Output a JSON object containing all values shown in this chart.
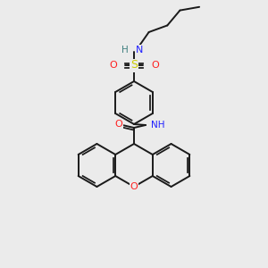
{
  "bg_color": "#ebebeb",
  "bond_color": "#1a1a1a",
  "atom_colors": {
    "N": "#2020ff",
    "O": "#ff2020",
    "S": "#cccc00",
    "H": "#408080",
    "C": "#1a1a1a"
  },
  "figsize": [
    3.0,
    3.0
  ],
  "dpi": 100
}
